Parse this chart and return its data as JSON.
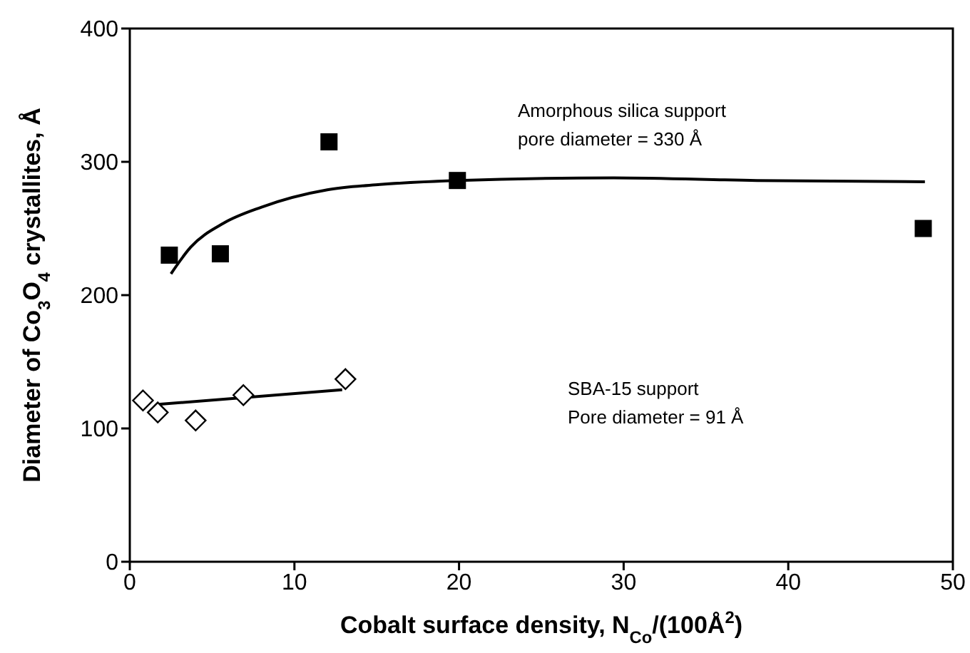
{
  "chart_data": {
    "type": "scatter",
    "xlabel": "Cobalt surface density, N$_{Co}$/(100Å$^{2}$)",
    "ylabel": "Diameter of Co$_{3}$O$_{4}$ crystallites, Å",
    "xlim": [
      0,
      50
    ],
    "xticks": [
      0,
      10,
      20,
      30,
      40,
      50
    ],
    "ylim": [
      0,
      400
    ],
    "yticks": [
      0,
      100,
      200,
      300,
      400
    ],
    "grid": false,
    "legend": false,
    "annotations": [
      "Amorphous silica support\npore diameter = 330 Å",
      "SBA-15 support\nPore diameter = 91 Å"
    ],
    "series": [
      {
        "marker": "square",
        "color": "#000000",
        "x": [
          2.4,
          5.5,
          12.1,
          19.9,
          48.2
        ],
        "values": [
          230,
          231,
          315,
          286,
          250
        ]
      },
      {
        "marker": "diamond",
        "color": "#000000",
        "x": [
          0.8,
          1.7,
          4.0,
          6.9,
          13.1
        ],
        "values": [
          121,
          112,
          106,
          125,
          137
        ]
      },
      {
        "type": "line",
        "marker": "none",
        "color": "#000000",
        "x": [
          2.5,
          3.7,
          5.7,
          8.0,
          12.0,
          15.2,
          19.9,
          29.4,
          38.1,
          48.3
        ],
        "values": [
          216,
          236,
          254,
          266,
          279,
          283,
          286,
          288,
          286,
          285
        ]
      },
      {
        "type": "line",
        "marker": "none",
        "color": "#000000",
        "x": [
          1.7,
          12.9
        ],
        "values": [
          118,
          129
        ]
      }
    ]
  }
}
